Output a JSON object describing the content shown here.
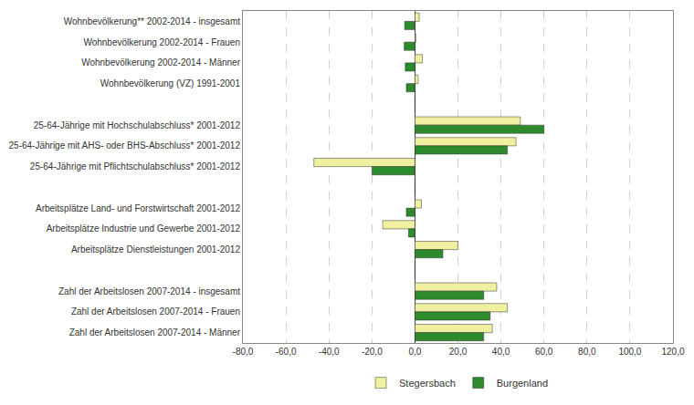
{
  "chart_data": {
    "type": "bar",
    "orientation": "horizontal",
    "categories": [
      "Wohnbevölkerung** 2002-2014 - insgesamt",
      "Wohnbevölkerung 2002-2014 - Frauen",
      "Wohnbevölkerung 2002-2014 - Männer",
      "Wohnbevölkerung (VZ) 1991-2001",
      null,
      "25-64-Jährige mit Hochschulabschluss* 2001-2012",
      "25-64-Jährige mit AHS- oder BHS-Abschluss* 2001-2012",
      "25-64-Jährige mit Pflichtschulabschluss* 2001-2012",
      null,
      "Arbeitsplätze Land- und Forstwirtschaft 2001-2012",
      "Arbeitsplätze Industrie und Gewerbe 2001-2012",
      "Arbeitsplätze Dienstleistungen 2001-2012",
      null,
      "Zahl der Arbeitslosen 2007-2014 - insgesamt",
      "Zahl der Arbeitslosen 2007-2014 - Frauen",
      "Zahl der Arbeitslosen 2007-2014 - Männer"
    ],
    "series": [
      {
        "name": "Stegersbach",
        "color": "#f0f0a0",
        "values": [
          2.0,
          0.5,
          3.5,
          1.5,
          0,
          49.0,
          47.0,
          -47.0,
          0,
          3.0,
          -15.0,
          20.0,
          0,
          38.0,
          43.0,
          36.0
        ]
      },
      {
        "name": "Burgenland",
        "color": "#2d8a2d",
        "values": [
          -4.8,
          -5.0,
          -4.5,
          -4.0,
          0,
          60.0,
          43.0,
          -20.0,
          0,
          -4.0,
          -3.0,
          13.0,
          0,
          32.0,
          35.0,
          32.0
        ]
      }
    ],
    "xlim": [
      -80,
      120
    ],
    "xticks": [
      {
        "value": -80,
        "label": "-80,0"
      },
      {
        "value": -60,
        "label": "-60,0"
      },
      {
        "value": -40,
        "label": "-40,0"
      },
      {
        "value": -20,
        "label": "-20,0"
      },
      {
        "value": 0,
        "label": "0,0"
      },
      {
        "value": 20,
        "label": "20,0"
      },
      {
        "value": 40,
        "label": "40,0"
      },
      {
        "value": 60,
        "label": "60,0"
      },
      {
        "value": 80,
        "label": "80,0"
      },
      {
        "value": 100,
        "label": "100,0"
      },
      {
        "value": 120,
        "label": "120,0"
      }
    ],
    "grid": true,
    "legend": "bottom"
  }
}
